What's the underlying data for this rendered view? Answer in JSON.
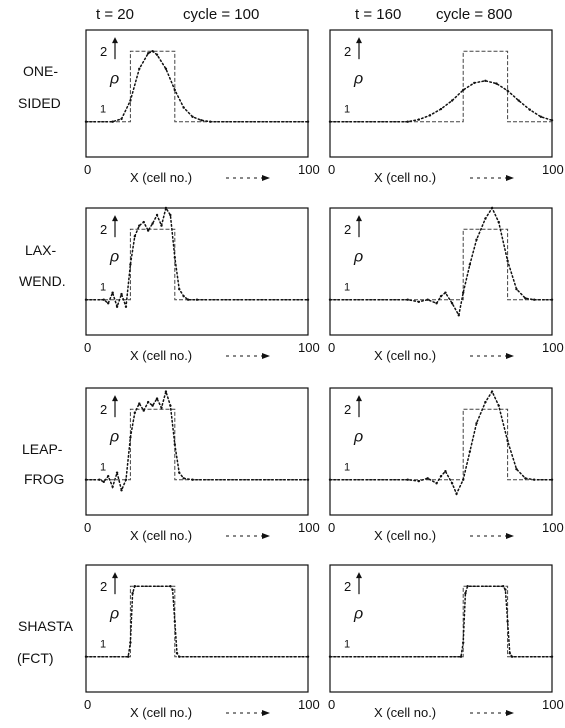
{
  "columns": [
    {
      "time_label": "t = 20",
      "cycle_label": "cycle = 100"
    },
    {
      "time_label": "t = 160",
      "cycle_label": "cycle = 800"
    }
  ],
  "rows": [
    {
      "label_1": "ONE-",
      "label_2": "SIDED"
    },
    {
      "label_1": "LAX-",
      "label_2": "WEND."
    },
    {
      "label_1": "LEAP-",
      "label_2": "FROG"
    },
    {
      "label_1": "SHASTA",
      "label_2": "(FCT)"
    }
  ],
  "axis": {
    "x_label": "X (cell no.)",
    "y_label": "ρ",
    "x_min_label": "0",
    "x_max_label": "100",
    "y_tick_2": "2",
    "y_tick_1": "1"
  },
  "chart_data": [
    {
      "type": "line",
      "row": "ONE-SIDED",
      "column": "t = 20",
      "xlim": [
        0,
        100
      ],
      "ylim": [
        0.5,
        2.3
      ],
      "series": [
        {
          "style": "exact",
          "x": [
            0,
            20,
            20,
            40,
            40,
            100
          ],
          "y": [
            1,
            1,
            2,
            2,
            1,
            1
          ]
        },
        {
          "style": "numerical",
          "x": [
            0,
            12,
            16,
            20,
            24,
            28,
            30,
            32,
            36,
            40,
            44,
            48,
            52,
            56,
            100
          ],
          "y": [
            1,
            1,
            1.04,
            1.3,
            1.75,
            1.97,
            2.0,
            1.95,
            1.75,
            1.45,
            1.2,
            1.07,
            1.02,
            1,
            1
          ]
        }
      ]
    },
    {
      "type": "line",
      "row": "ONE-SIDED",
      "column": "t = 160",
      "xlim": [
        0,
        100
      ],
      "ylim": [
        0.5,
        2.3
      ],
      "series": [
        {
          "style": "exact",
          "x": [
            0,
            60,
            60,
            80,
            80,
            100
          ],
          "y": [
            1,
            1,
            2,
            2,
            1,
            1
          ]
        },
        {
          "style": "numerical",
          "x": [
            0,
            35,
            40,
            45,
            50,
            55,
            60,
            65,
            70,
            75,
            80,
            85,
            90,
            95,
            100
          ],
          "y": [
            1,
            1,
            1.03,
            1.09,
            1.18,
            1.3,
            1.45,
            1.55,
            1.58,
            1.54,
            1.44,
            1.3,
            1.17,
            1.07,
            1.02
          ]
        }
      ]
    },
    {
      "type": "line",
      "row": "LAX-WEND.",
      "column": "t = 20",
      "xlim": [
        0,
        100
      ],
      "ylim": [
        0.5,
        2.3
      ],
      "series": [
        {
          "style": "exact",
          "x": [
            0,
            20,
            20,
            40,
            40,
            100
          ],
          "y": [
            1,
            1,
            2,
            2,
            1,
            1
          ]
        },
        {
          "style": "numerical",
          "x": [
            0,
            8,
            10,
            12,
            14,
            16,
            18,
            20,
            22,
            24,
            26,
            28,
            30,
            32,
            34,
            36,
            38,
            40,
            42,
            44,
            46,
            50,
            100
          ],
          "y": [
            1,
            1,
            0.95,
            1.1,
            0.9,
            1.08,
            0.9,
            1.5,
            1.9,
            2.05,
            2.1,
            1.98,
            2.08,
            2.2,
            2.05,
            2.3,
            2.2,
            1.6,
            1.15,
            1.05,
            1,
            1,
            1
          ]
        }
      ]
    },
    {
      "type": "line",
      "row": "LAX-WEND.",
      "column": "t = 160",
      "xlim": [
        0,
        100
      ],
      "ylim": [
        0.5,
        2.3
      ],
      "series": [
        {
          "style": "exact",
          "x": [
            0,
            60,
            60,
            80,
            80,
            100
          ],
          "y": [
            1,
            1,
            2,
            2,
            1,
            1
          ]
        },
        {
          "style": "numerical",
          "x": [
            0,
            35,
            40,
            44,
            48,
            50,
            52,
            55,
            58,
            60,
            63,
            66,
            70,
            73,
            76,
            80,
            84,
            88,
            92,
            100
          ],
          "y": [
            1,
            1,
            0.97,
            1,
            0.95,
            1.05,
            1.1,
            0.95,
            0.78,
            1.1,
            1.5,
            1.85,
            2.15,
            2.3,
            2.1,
            1.55,
            1.15,
            1.02,
            1,
            1
          ]
        }
      ]
    },
    {
      "type": "line",
      "row": "LEAP-FROG",
      "column": "t = 20",
      "xlim": [
        0,
        100
      ],
      "ylim": [
        0.5,
        2.3
      ],
      "series": [
        {
          "style": "exact",
          "x": [
            0,
            20,
            20,
            40,
            40,
            100
          ],
          "y": [
            1,
            1,
            2,
            2,
            1,
            1
          ]
        },
        {
          "style": "numerical",
          "x": [
            0,
            6,
            8,
            10,
            12,
            14,
            16,
            18,
            20,
            22,
            24,
            26,
            28,
            30,
            32,
            34,
            36,
            38,
            40,
            42,
            44,
            48,
            100
          ],
          "y": [
            1,
            1,
            0.97,
            1.05,
            0.9,
            1.1,
            0.85,
            1.0,
            1.6,
            1.95,
            2.08,
            1.98,
            2.1,
            2.05,
            2.15,
            2.02,
            2.25,
            2.05,
            1.5,
            1.1,
            1.02,
            1,
            1
          ]
        }
      ]
    },
    {
      "type": "line",
      "row": "LEAP-FROG",
      "column": "t = 160",
      "xlim": [
        0,
        100
      ],
      "ylim": [
        0.5,
        2.3
      ],
      "series": [
        {
          "style": "exact",
          "x": [
            0,
            60,
            60,
            80,
            80,
            100
          ],
          "y": [
            1,
            1,
            2,
            2,
            1,
            1
          ]
        },
        {
          "style": "numerical",
          "x": [
            0,
            35,
            40,
            44,
            48,
            50,
            52,
            55,
            57,
            60,
            63,
            66,
            70,
            73,
            76,
            80,
            84,
            88,
            92,
            100
          ],
          "y": [
            1,
            1,
            0.98,
            1.02,
            0.95,
            1.05,
            1.12,
            0.95,
            0.8,
            1.0,
            1.4,
            1.8,
            2.1,
            2.25,
            2.05,
            1.55,
            1.15,
            1.02,
            1,
            1
          ]
        }
      ]
    },
    {
      "type": "line",
      "row": "SHASTA (FCT)",
      "column": "t = 20",
      "xlim": [
        0,
        100
      ],
      "ylim": [
        0.5,
        2.3
      ],
      "series": [
        {
          "style": "exact",
          "x": [
            0,
            20,
            20,
            40,
            40,
            100
          ],
          "y": [
            1,
            1,
            2,
            2,
            1,
            1
          ]
        },
        {
          "style": "numerical",
          "x": [
            0,
            19,
            20,
            21,
            22,
            38,
            39,
            40,
            41,
            42,
            100
          ],
          "y": [
            1,
            1,
            1.2,
            1.9,
            2,
            2,
            1.95,
            1.5,
            1.05,
            1,
            1
          ]
        }
      ]
    },
    {
      "type": "line",
      "row": "SHASTA (FCT)",
      "column": "t = 160",
      "xlim": [
        0,
        100
      ],
      "ylim": [
        0.5,
        2.3
      ],
      "series": [
        {
          "style": "exact",
          "x": [
            0,
            60,
            60,
            80,
            80,
            100
          ],
          "y": [
            1,
            1,
            2,
            2,
            1,
            1
          ]
        },
        {
          "style": "numerical",
          "x": [
            0,
            59,
            60,
            61,
            62,
            78,
            79,
            80,
            81,
            82,
            100
          ],
          "y": [
            1,
            1,
            1.2,
            1.9,
            2,
            2,
            1.95,
            1.5,
            1.05,
            1,
            1
          ]
        }
      ]
    }
  ]
}
